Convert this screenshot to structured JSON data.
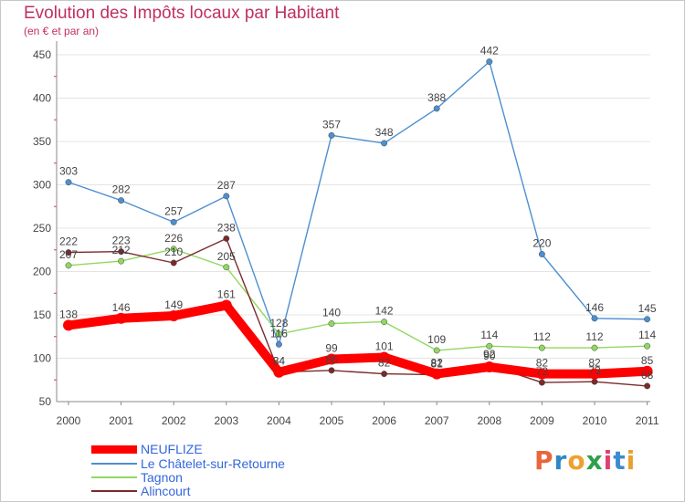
{
  "title": "Evolution des Impôts locaux par Habitant",
  "subtitle": "(en € et par an)",
  "logo": {
    "text": "Proxiti",
    "colors": [
      "#e8663c",
      "#2e86c8",
      "#f0a030",
      "#2ea04c",
      "#e04070",
      "#3c8ad0",
      "#e8a030"
    ]
  },
  "chart_data": {
    "type": "line",
    "title": "Evolution des Impôts locaux par Habitant",
    "subtitle": "(en € et par an)",
    "xlabel": "",
    "ylabel": "",
    "ylim": [
      50,
      450
    ],
    "yticks": [
      "50",
      "100",
      "150",
      "200",
      "250",
      "300",
      "350",
      "400",
      "450"
    ],
    "categories": [
      "2000",
      "2001",
      "2002",
      "2003",
      "2004",
      "2005",
      "2006",
      "2007",
      "2008",
      "2009",
      "2010",
      "2011"
    ],
    "series": [
      {
        "name": "NEUFLIZE",
        "color": "#ff0000",
        "values": [
          138,
          146,
          149,
          161,
          84,
          99,
          101,
          82,
          90,
          82,
          82,
          85
        ]
      },
      {
        "name": "Le Châtelet-sur-Retourne",
        "color": "#4d8fd0",
        "values": [
          303,
          282,
          257,
          287,
          116,
          357,
          348,
          388,
          442,
          220,
          146,
          145
        ]
      },
      {
        "name": "Tagnon",
        "color": "#90d860",
        "values": [
          207,
          212,
          226,
          205,
          128,
          140,
          142,
          109,
          114,
          112,
          112,
          114
        ]
      },
      {
        "name": "Alincourt",
        "color": "#7a2a2a",
        "values": [
          222,
          223,
          210,
          238,
          84,
          86,
          82,
          81,
          92,
          72,
          73,
          68
        ]
      }
    ],
    "legend_position": "bottom-left"
  }
}
